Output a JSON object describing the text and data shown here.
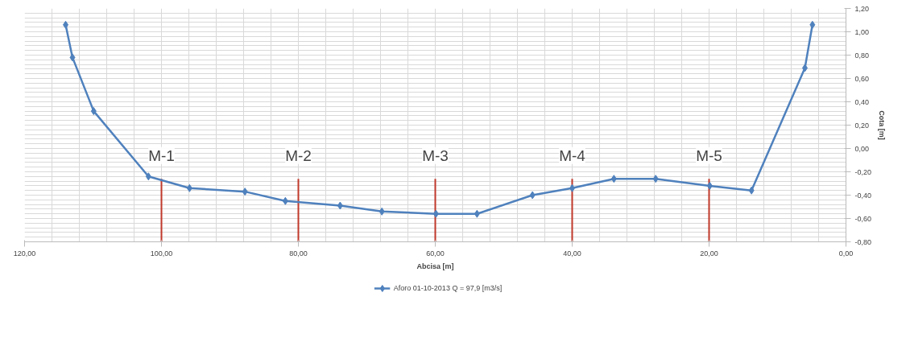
{
  "chart_data": {
    "type": "line",
    "xlabel": "Abcisa [m]",
    "ylabel": "Cota [m]",
    "xlim": [
      120,
      0
    ],
    "xticks": [
      {
        "value": 120,
        "label": "120,00"
      },
      {
        "value": 100,
        "label": "100,00"
      },
      {
        "value": 80,
        "label": "80,00"
      },
      {
        "value": 60,
        "label": "60,00"
      },
      {
        "value": 40,
        "label": "40,00"
      },
      {
        "value": 20,
        "label": "20,00"
      },
      {
        "value": 0,
        "label": "0,00"
      }
    ],
    "ylim": [
      -0.8,
      1.2
    ],
    "yticks": [
      {
        "value": -0.8,
        "label": "-0,80"
      },
      {
        "value": -0.6,
        "label": "-0,60"
      },
      {
        "value": -0.4,
        "label": "-0,40"
      },
      {
        "value": -0.2,
        "label": "-0,20"
      },
      {
        "value": 0,
        "label": "0,00"
      },
      {
        "value": 0.2,
        "label": "0,20"
      },
      {
        "value": 0.4,
        "label": "0,40"
      },
      {
        "value": 0.6,
        "label": "0,60"
      },
      {
        "value": 0.8,
        "label": "0,80"
      },
      {
        "value": 1.0,
        "label": "1,00"
      },
      {
        "value": 1.2,
        "label": "1,20"
      }
    ],
    "x": [
      114.0,
      113.0,
      109.9,
      101.9,
      95.9,
      87.8,
      81.9,
      73.9,
      67.8,
      59.9,
      53.9,
      45.8,
      40.0,
      33.9,
      27.8,
      19.9,
      13.8,
      6.0,
      4.9
    ],
    "series": [
      {
        "name": "Aforo 01-10-2013 Q = 97,9 [m3/s]",
        "color": "#4f81bd",
        "values": [
          1.06,
          0.78,
          0.32,
          -0.24,
          -0.34,
          -0.37,
          -0.45,
          -0.49,
          -0.54,
          -0.56,
          -0.56,
          -0.4,
          -0.34,
          -0.26,
          -0.26,
          -0.32,
          -0.36,
          0.69,
          1.06
        ]
      }
    ],
    "ref_lines": [
      {
        "axis": "x",
        "value": 100,
        "label": "M-1",
        "color": "#c0392b"
      },
      {
        "axis": "x",
        "value": 80,
        "label": "M-2",
        "color": "#c0392b"
      },
      {
        "axis": "x",
        "value": 60,
        "label": "M-3",
        "color": "#c0392b"
      },
      {
        "axis": "x",
        "value": 40,
        "label": "M-4",
        "color": "#c0392b"
      },
      {
        "axis": "x",
        "value": 20,
        "label": "M-5",
        "color": "#c0392b"
      }
    ],
    "grid": true,
    "legend": "bottom",
    "marker": "diamond",
    "line_style": "solid"
  }
}
